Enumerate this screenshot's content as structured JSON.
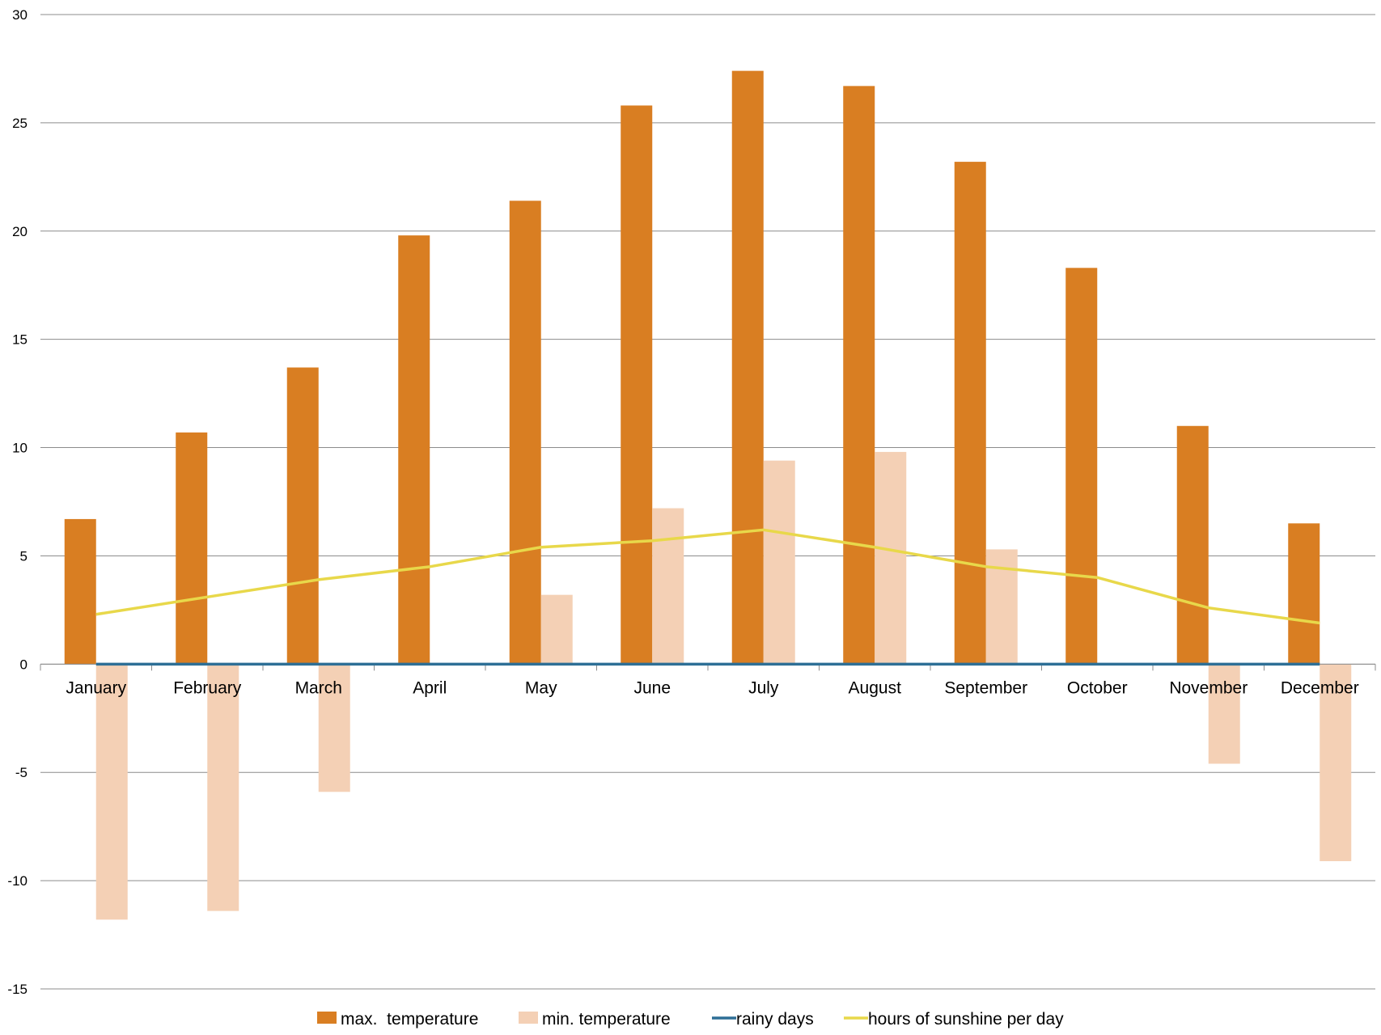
{
  "chart_data": {
    "type": "bar",
    "categories": [
      "January",
      "February",
      "March",
      "April",
      "May",
      "June",
      "July",
      "August",
      "September",
      "October",
      "November",
      "December"
    ],
    "series": [
      {
        "name": "max.  temperature",
        "kind": "bar",
        "color": "#D97E22",
        "values": [
          6.7,
          10.7,
          13.7,
          19.8,
          21.4,
          25.8,
          27.4,
          26.7,
          23.2,
          18.3,
          11.0,
          6.5
        ]
      },
      {
        "name": "min. temperature",
        "kind": "bar",
        "color": "#F4D0B5",
        "values": [
          -11.8,
          -11.4,
          -5.9,
          0,
          3.2,
          7.2,
          9.4,
          9.8,
          5.3,
          0,
          -4.6,
          -9.1
        ]
      },
      {
        "name": "rainy days",
        "kind": "line",
        "color": "#2E6F96",
        "values": [
          0,
          0,
          0,
          0,
          0,
          0,
          0,
          0,
          0,
          0,
          0,
          0
        ]
      },
      {
        "name": "hours of sunshine per day",
        "kind": "line",
        "color": "#E8D84A",
        "values": [
          2.3,
          3.1,
          3.9,
          4.5,
          5.4,
          5.7,
          6.2,
          5.4,
          4.5,
          4.0,
          2.6,
          1.9
        ]
      }
    ],
    "ylim": [
      -15,
      30
    ],
    "yticks": [
      30,
      25,
      20,
      15,
      10,
      5,
      0,
      -5,
      -10,
      -15
    ],
    "grid": true,
    "legend_position": "bottom",
    "title": "",
    "xlabel": "",
    "ylabel": ""
  }
}
